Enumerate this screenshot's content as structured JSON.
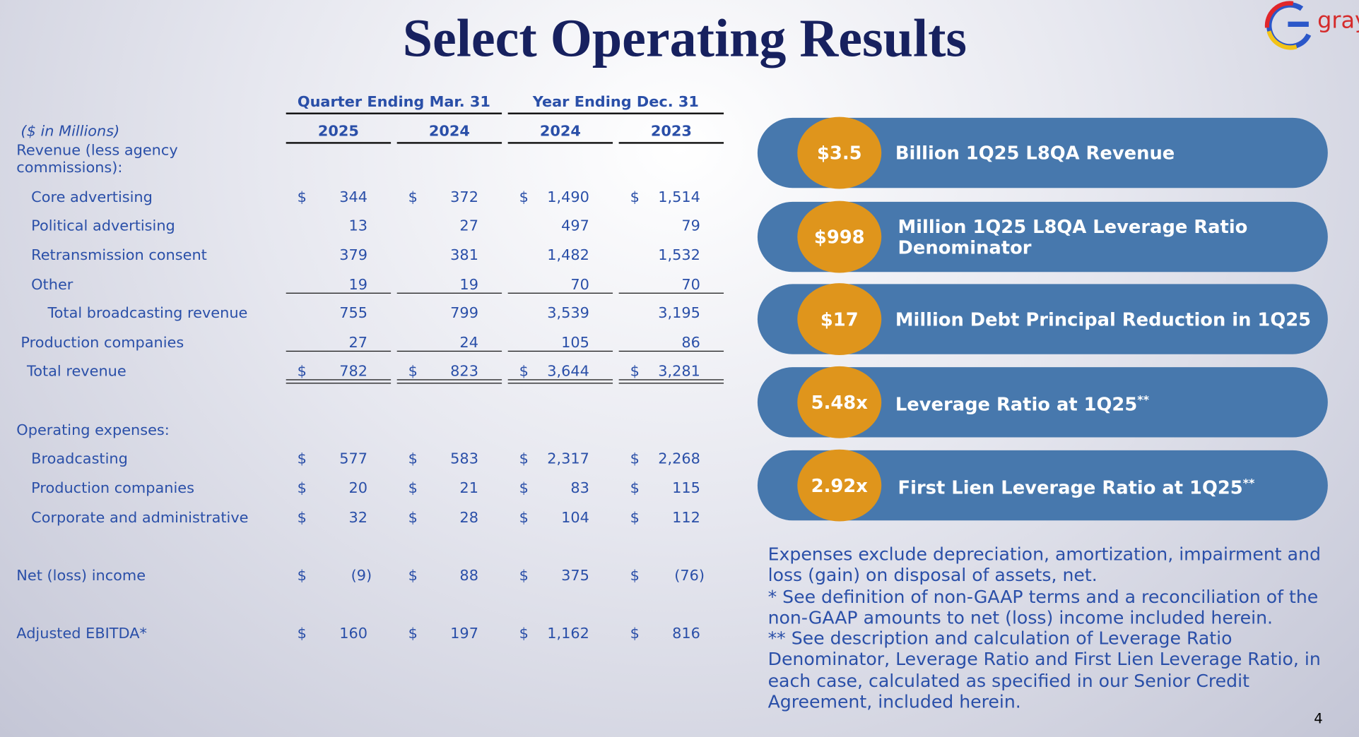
{
  "title": "Select Operating Results",
  "logo": "gray",
  "page_number": "4",
  "table": {
    "units": "($ in Millions)",
    "groups": [
      "Quarter Ending Mar. 31",
      "Year Ending Dec. 31"
    ],
    "columns": [
      "2025",
      "2024",
      "2024",
      "2023"
    ],
    "rows": [
      {
        "label": "Revenue (less agency commissions):"
      },
      {
        "label": "Core advertising",
        "cells": [
          [
            "$",
            "344"
          ],
          [
            "$",
            "372"
          ],
          [
            "$",
            "1,490"
          ],
          [
            "$",
            "1,514"
          ]
        ]
      },
      {
        "label": "Political advertising",
        "cells": [
          [
            "13"
          ],
          [
            "27"
          ],
          [
            "497"
          ],
          [
            "79"
          ]
        ]
      },
      {
        "label": "Retransmission consent",
        "cells": [
          [
            "379"
          ],
          [
            "381"
          ],
          [
            "1,482"
          ],
          [
            "1,532"
          ]
        ]
      },
      {
        "label": "Other",
        "cells": [
          [
            "19"
          ],
          [
            "19"
          ],
          [
            "70"
          ],
          [
            "70"
          ]
        ]
      },
      {
        "label": "Total broadcasting revenue",
        "cells": [
          [
            "755"
          ],
          [
            "799"
          ],
          [
            "3,539"
          ],
          [
            "3,195"
          ]
        ]
      },
      {
        "label": "Production companies",
        "cells": [
          [
            "27"
          ],
          [
            "24"
          ],
          [
            "105"
          ],
          [
            "86"
          ]
        ]
      },
      {
        "label": "Total revenue",
        "cells": [
          [
            "$",
            "782"
          ],
          [
            "$",
            "823"
          ],
          [
            "$",
            "3,644"
          ],
          [
            "$",
            "3,281"
          ]
        ]
      },
      {
        "label": "Operating expenses:"
      },
      {
        "label": "Broadcasting",
        "cells": [
          [
            "$",
            "577"
          ],
          [
            "$",
            "583"
          ],
          [
            "$",
            "2,317"
          ],
          [
            "$",
            "2,268"
          ]
        ]
      },
      {
        "label": "Production companies",
        "cells": [
          [
            "$",
            "20"
          ],
          [
            "$",
            "21"
          ],
          [
            "$",
            "83"
          ],
          [
            "$",
            "115"
          ]
        ]
      },
      {
        "label": "Corporate and administrative",
        "cells": [
          [
            "$",
            "32"
          ],
          [
            "$",
            "28"
          ],
          [
            "$",
            "104"
          ],
          [
            "$",
            "112"
          ]
        ]
      },
      {
        "label": "Net (loss) income",
        "cells": [
          [
            "$",
            "(9)"
          ],
          [
            "$",
            "88"
          ],
          [
            "$",
            "375"
          ],
          [
            "$",
            "(76)"
          ]
        ]
      },
      {
        "label": "Adjusted EBITDA*",
        "cells": [
          [
            "$",
            "160"
          ],
          [
            "$",
            "197"
          ],
          [
            "$",
            "1,162"
          ],
          [
            "$",
            "816"
          ]
        ]
      }
    ]
  },
  "highlights": [
    {
      "figure": "$3.5",
      "text": "Billion 1Q25 L8QA Revenue"
    },
    {
      "figure": "$998",
      "text": "Million 1Q25 L8QA Leverage Ratio Denominator"
    },
    {
      "figure": "$17",
      "text": "Million Debt Principal Reduction in 1Q25"
    },
    {
      "figure": "5.48x",
      "text": "Leverage Ratio at 1Q25",
      "sup": "**"
    },
    {
      "figure": "2.92x",
      "text": "First Lien Leverage Ratio at 1Q25",
      "sup": "**"
    }
  ],
  "notes": [
    "Expenses exclude depreciation, amortization, impairment and loss (gain) on disposal of assets, net.",
    "* See definition of non-GAAP terms and a reconciliation of the non-GAAP amounts to net (loss) income included herein.",
    "** See description and calculation of Leverage Ratio Denominator, Leverage Ratio and First Lien Leverage Ratio, in each case, calculated as specified in our Senior Credit Agreement, included herein."
  ]
}
